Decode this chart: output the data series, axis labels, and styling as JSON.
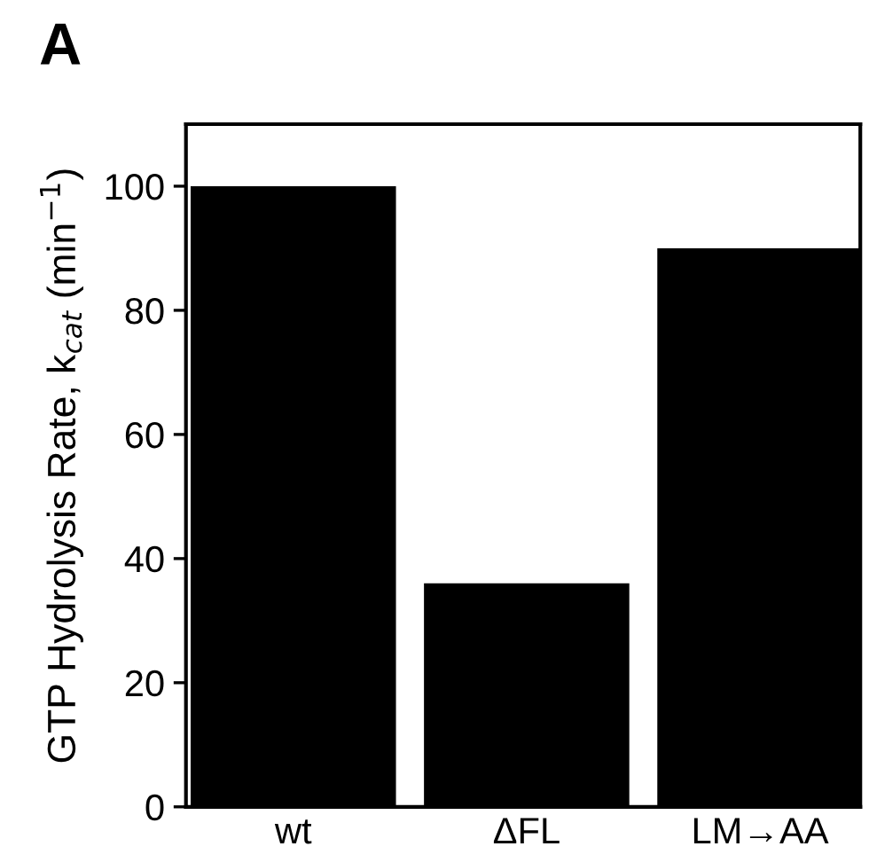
{
  "chart_data": {
    "type": "bar",
    "title": "A",
    "ylabel": "GTP Hydrolysis Rate, k$_{cat}$ (min$^{−1}$)",
    "categories": [
      "wt",
      "ΔFL",
      "LM→AA"
    ],
    "values": [
      100,
      36,
      90
    ],
    "color": "#000000",
    "ylim": [
      0,
      110
    ],
    "yticks": [
      0,
      20,
      40,
      60,
      80,
      100
    ],
    "grid": false,
    "legend": false
  }
}
